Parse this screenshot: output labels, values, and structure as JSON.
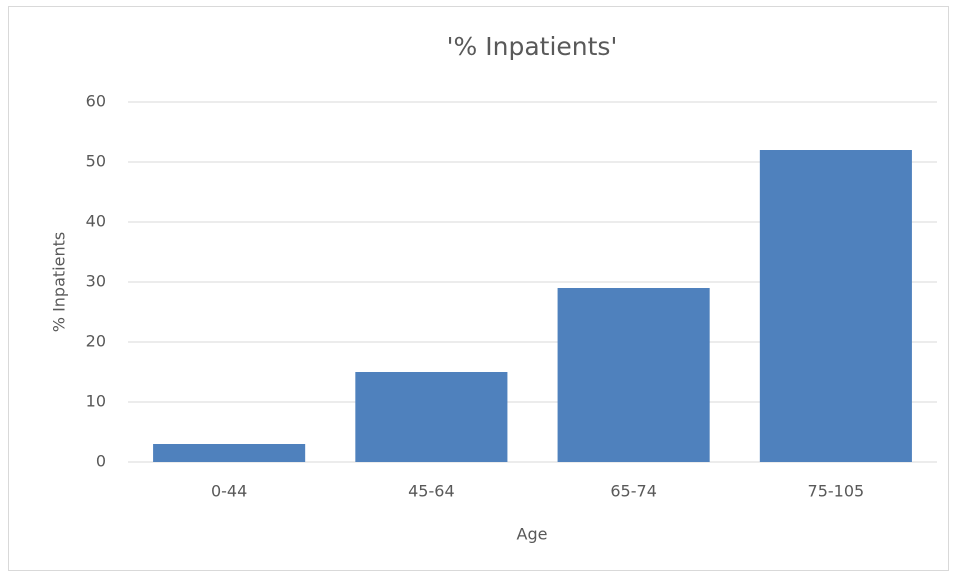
{
  "chart_data": {
    "type": "bar",
    "title": "'% Inpatients'",
    "x_label": "Age",
    "y_label": "% Inpatients",
    "categories": [
      "0-44",
      "45-64",
      "65-74",
      "75-105"
    ],
    "values": [
      3,
      15,
      29,
      52
    ],
    "color": "#4f81bd",
    "ylim": [
      0,
      60
    ],
    "yticks": [
      0,
      10,
      20,
      30,
      40,
      50,
      60
    ],
    "grid": true
  }
}
